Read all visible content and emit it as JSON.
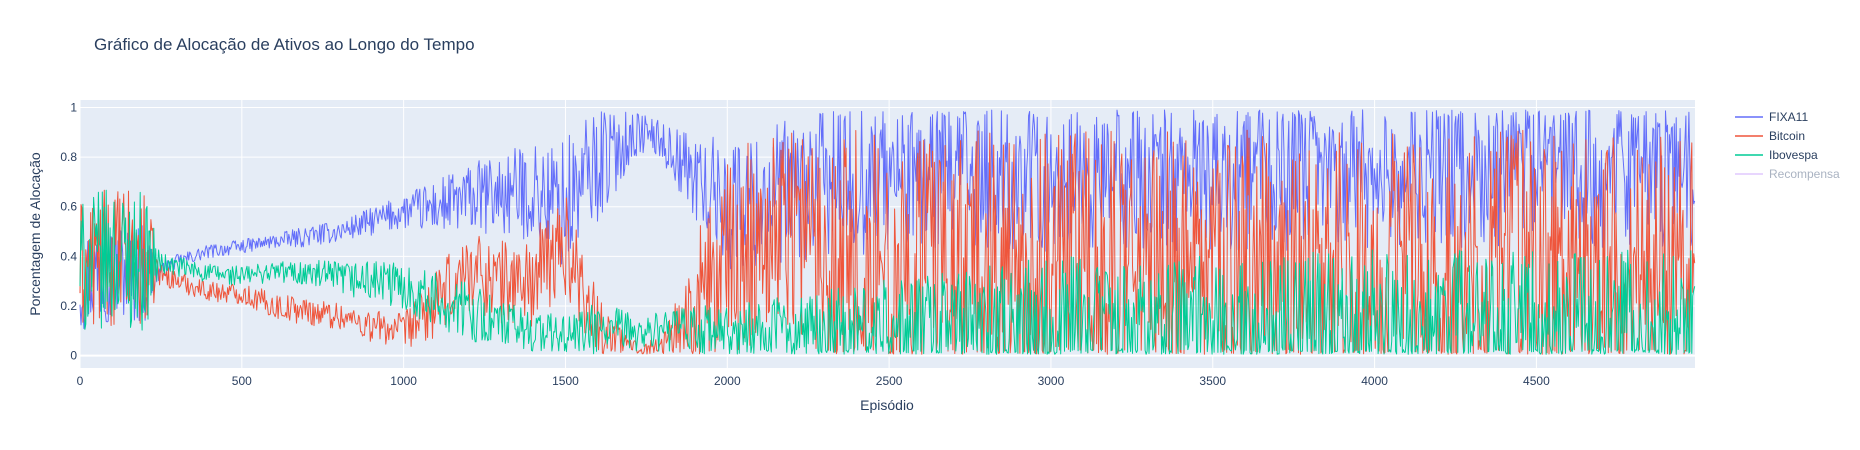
{
  "chart_data": {
    "type": "line",
    "title": "Gráfico de Alocação de Ativos ao Longo do Tempo",
    "xlabel": "Episódio",
    "ylabel": "Porcentagem de Alocação",
    "xlim": [
      0,
      4990
    ],
    "ylim": [
      -0.05,
      1.03
    ],
    "x_ticks": [
      0,
      500,
      1000,
      1500,
      2000,
      2500,
      3000,
      3500,
      4000,
      4500
    ],
    "y_ticks": [
      0,
      0.2,
      0.4,
      0.6,
      0.8,
      1
    ],
    "y_tick_labels": [
      "0",
      "0.2",
      "0.4",
      "0.6",
      "0.8",
      "1"
    ],
    "grid": true,
    "legend_position": "top-right",
    "series": [
      {
        "name": "FIXA11",
        "color": "#636efa",
        "visible": true,
        "x": [
          0,
          100,
          200,
          250,
          300,
          400,
          500,
          600,
          700,
          800,
          900,
          1000,
          1100,
          1200,
          1300,
          1400,
          1500,
          1600,
          1700,
          1750,
          1800,
          1900,
          2000,
          2100,
          2200,
          2300,
          2500,
          3000,
          3500,
          4000,
          4500,
          4990
        ],
        "y": [
          0.3,
          0.35,
          0.33,
          0.34,
          0.38,
          0.42,
          0.44,
          0.46,
          0.48,
          0.5,
          0.54,
          0.58,
          0.6,
          0.63,
          0.65,
          0.66,
          0.6,
          0.78,
          0.88,
          0.9,
          0.86,
          0.72,
          0.6,
          0.62,
          0.65,
          0.7,
          0.72,
          0.72,
          0.73,
          0.73,
          0.74,
          0.74
        ],
        "spread": [
          0.15,
          0.15,
          0.15,
          0.02,
          0.02,
          0.02,
          0.02,
          0.02,
          0.03,
          0.03,
          0.04,
          0.05,
          0.08,
          0.1,
          0.12,
          0.14,
          0.2,
          0.18,
          0.08,
          0.05,
          0.06,
          0.12,
          0.2,
          0.2,
          0.22,
          0.22,
          0.22,
          0.22,
          0.22,
          0.22,
          0.22,
          0.22
        ]
      },
      {
        "name": "Bitcoin",
        "color": "#EF553B",
        "visible": true,
        "x": [
          0,
          100,
          200,
          250,
          300,
          400,
          500,
          600,
          700,
          800,
          900,
          1000,
          1100,
          1200,
          1300,
          1400,
          1500,
          1600,
          1700,
          1750,
          1800,
          1900,
          2000,
          2100,
          2200,
          2300,
          2500,
          3000,
          3500,
          4000,
          4500,
          4990
        ],
        "y": [
          0.35,
          0.4,
          0.38,
          0.33,
          0.3,
          0.26,
          0.25,
          0.2,
          0.18,
          0.16,
          0.12,
          0.1,
          0.2,
          0.35,
          0.3,
          0.3,
          0.45,
          0.12,
          0.04,
          0.03,
          0.04,
          0.2,
          0.35,
          0.5,
          0.55,
          0.45,
          0.35,
          0.35,
          0.35,
          0.35,
          0.35,
          0.35
        ],
        "spread": [
          0.2,
          0.2,
          0.2,
          0.03,
          0.03,
          0.03,
          0.03,
          0.04,
          0.04,
          0.04,
          0.05,
          0.05,
          0.1,
          0.12,
          0.12,
          0.15,
          0.15,
          0.1,
          0.02,
          0.02,
          0.03,
          0.2,
          0.3,
          0.3,
          0.3,
          0.35,
          0.4,
          0.4,
          0.4,
          0.4,
          0.4,
          0.4
        ]
      },
      {
        "name": "Ibovespa",
        "color": "#00cc96",
        "visible": true,
        "x": [
          0,
          100,
          200,
          250,
          300,
          400,
          500,
          600,
          700,
          800,
          900,
          1000,
          1100,
          1200,
          1300,
          1400,
          1500,
          1600,
          1700,
          1750,
          1800,
          1900,
          2000,
          2100,
          2200,
          2300,
          2500,
          3000,
          3500,
          4000,
          4500,
          4990
        ],
        "y": [
          0.35,
          0.4,
          0.38,
          0.37,
          0.36,
          0.33,
          0.32,
          0.34,
          0.33,
          0.31,
          0.3,
          0.28,
          0.22,
          0.18,
          0.12,
          0.1,
          0.08,
          0.1,
          0.1,
          0.09,
          0.1,
          0.1,
          0.08,
          0.1,
          0.1,
          0.1,
          0.1,
          0.12,
          0.12,
          0.12,
          0.12,
          0.12
        ],
        "spread": [
          0.2,
          0.2,
          0.2,
          0.03,
          0.03,
          0.03,
          0.03,
          0.03,
          0.04,
          0.05,
          0.06,
          0.07,
          0.08,
          0.08,
          0.08,
          0.06,
          0.06,
          0.08,
          0.06,
          0.05,
          0.06,
          0.08,
          0.08,
          0.1,
          0.1,
          0.12,
          0.15,
          0.2,
          0.2,
          0.22,
          0.22,
          0.22
        ]
      },
      {
        "name": "Recompensa",
        "color": "#ab63fa",
        "visible": false,
        "x": [],
        "y": []
      }
    ]
  }
}
